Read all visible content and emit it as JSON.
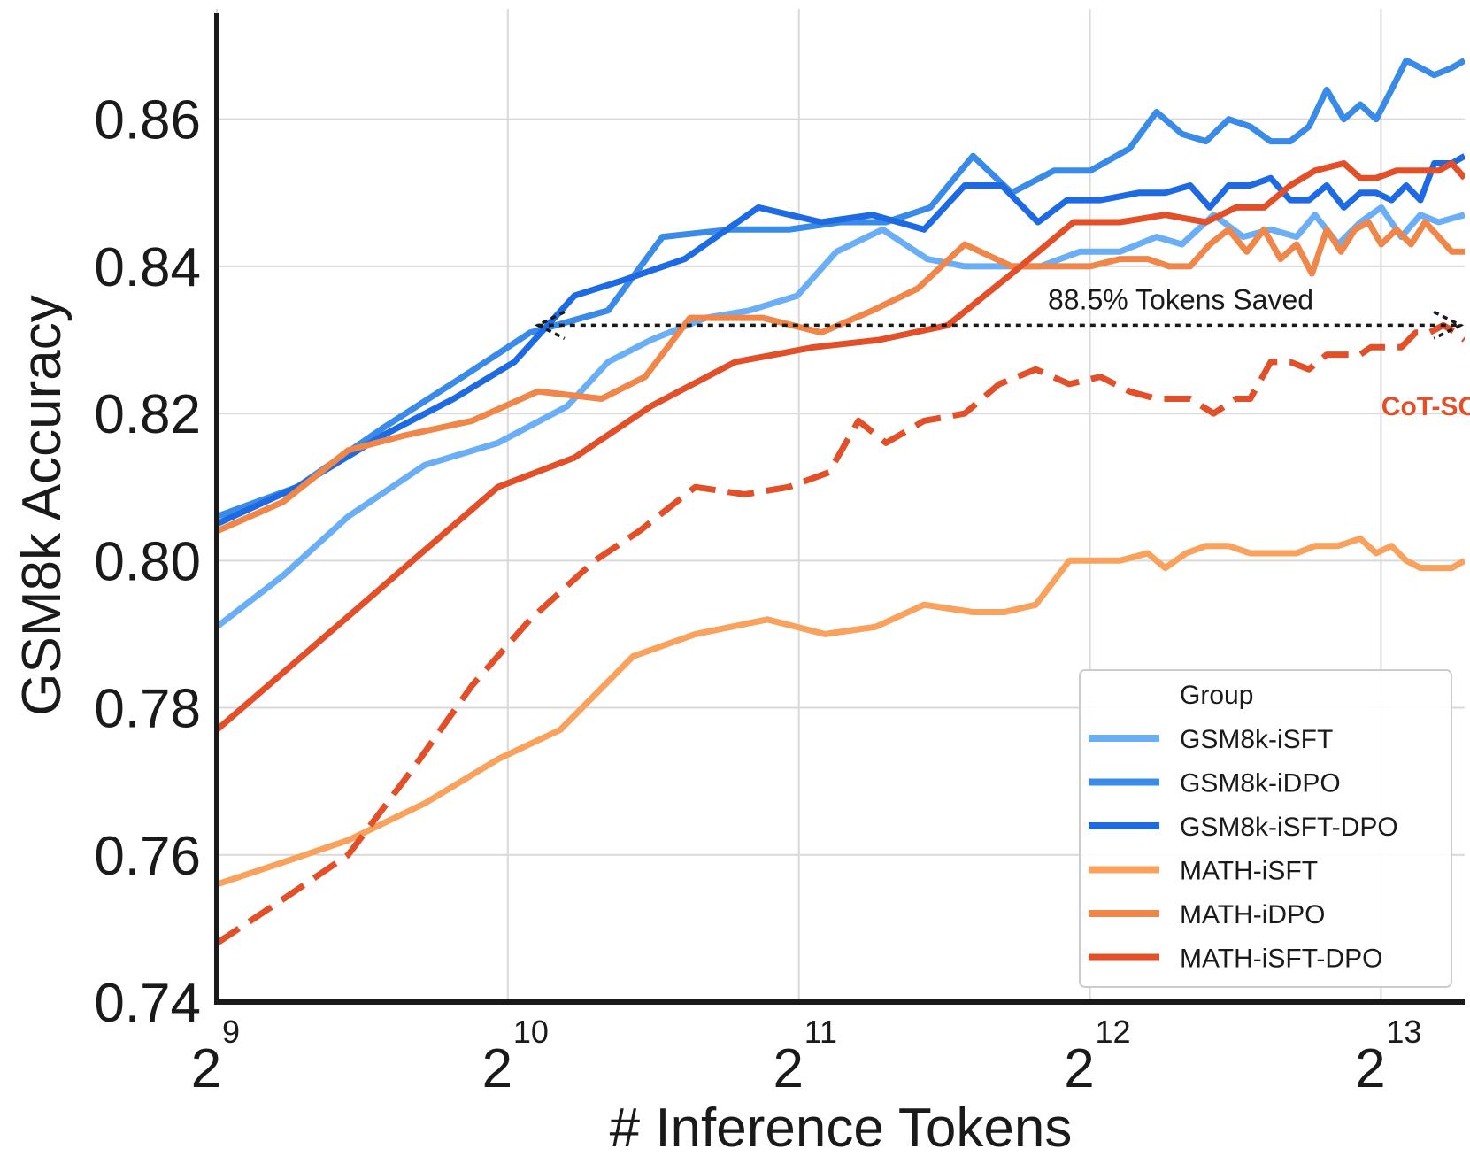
{
  "chart_data": {
    "type": "line",
    "xlabel": "# Inference Tokens",
    "ylabel": "GSM8k Accuracy",
    "x_scale": "log2",
    "xlim": [
      512,
      10000
    ],
    "ylim": [
      0.74,
      0.875
    ],
    "xticks": [
      {
        "value": 512,
        "base": "2",
        "exp": "9"
      },
      {
        "value": 1024,
        "base": "2",
        "exp": "10"
      },
      {
        "value": 2048,
        "base": "2",
        "exp": "11"
      },
      {
        "value": 4096,
        "base": "2",
        "exp": "12"
      },
      {
        "value": 8192,
        "base": "2",
        "exp": "13"
      }
    ],
    "yticks": [
      "0.74",
      "0.76",
      "0.78",
      "0.80",
      "0.82",
      "0.84",
      "0.86"
    ],
    "grid": true,
    "legend": {
      "title": "Group",
      "placement": "lower-right",
      "entries": [
        "GSM8k-iSFT",
        "GSM8k-iDPO",
        "GSM8k-iSFT-DPO",
        "MATH-iSFT",
        "MATH-iDPO",
        "MATH-iSFT-DPO"
      ]
    },
    "series": [
      {
        "name": "GSM8k-iSFT",
        "color": "#6aaef6",
        "dashed": false,
        "x": [
          512,
          600,
          700,
          840,
          1000,
          1180,
          1300,
          1440,
          1640,
          1820,
          2040,
          2240,
          2500,
          2780,
          3040,
          3300,
          3640,
          4000,
          4400,
          4800,
          5100,
          5500,
          5900,
          6300,
          6700,
          7000,
          7400,
          7800,
          8200,
          8600,
          9000,
          9400,
          10000
        ],
        "y": [
          0.791,
          0.798,
          0.806,
          0.813,
          0.816,
          0.821,
          0.827,
          0.83,
          0.833,
          0.834,
          0.836,
          0.842,
          0.845,
          0.841,
          0.84,
          0.84,
          0.84,
          0.842,
          0.842,
          0.844,
          0.843,
          0.847,
          0.844,
          0.845,
          0.844,
          0.847,
          0.843,
          0.846,
          0.848,
          0.844,
          0.847,
          0.846,
          0.847
        ]
      },
      {
        "name": "GSM8k-iDPO",
        "color": "#3a8ae8",
        "dashed": false,
        "x": [
          512,
          620,
          760,
          920,
          1080,
          1300,
          1480,
          1740,
          2000,
          2260,
          2520,
          2800,
          3100,
          3400,
          3760,
          4100,
          4500,
          4800,
          5100,
          5400,
          5700,
          6000,
          6300,
          6600,
          6900,
          7200,
          7500,
          7800,
          8100,
          8400,
          8700,
          9000,
          9300,
          9700,
          10000
        ],
        "y": [
          0.806,
          0.81,
          0.818,
          0.825,
          0.831,
          0.834,
          0.844,
          0.845,
          0.845,
          0.846,
          0.846,
          0.848,
          0.855,
          0.85,
          0.853,
          0.853,
          0.856,
          0.861,
          0.858,
          0.857,
          0.86,
          0.859,
          0.857,
          0.857,
          0.859,
          0.864,
          0.86,
          0.862,
          0.86,
          0.864,
          0.868,
          0.867,
          0.866,
          0.867,
          0.868
        ]
      },
      {
        "name": "GSM8k-iSFT-DPO",
        "color": "#1e6ae3",
        "dashed": false,
        "x": [
          512,
          620,
          760,
          900,
          1040,
          1200,
          1340,
          1560,
          1860,
          2160,
          2440,
          2760,
          3040,
          3320,
          3620,
          3880,
          4200,
          4600,
          4900,
          5200,
          5450,
          5700,
          6000,
          6300,
          6600,
          6900,
          7200,
          7500,
          7800,
          8100,
          8400,
          8700,
          9000,
          9300,
          9700,
          10000
        ],
        "y": [
          0.805,
          0.81,
          0.817,
          0.822,
          0.827,
          0.836,
          0.838,
          0.841,
          0.848,
          0.846,
          0.847,
          0.845,
          0.851,
          0.851,
          0.846,
          0.849,
          0.849,
          0.85,
          0.85,
          0.851,
          0.848,
          0.851,
          0.851,
          0.852,
          0.849,
          0.849,
          0.851,
          0.848,
          0.85,
          0.85,
          0.849,
          0.851,
          0.849,
          0.854,
          0.854,
          0.855
        ]
      },
      {
        "name": "MATH-iSFT",
        "color": "#f8a25d",
        "dashed": false,
        "x": [
          512,
          600,
          700,
          840,
          1000,
          1160,
          1380,
          1600,
          1900,
          2180,
          2460,
          2760,
          3100,
          3340,
          3600,
          3900,
          4100,
          4400,
          4700,
          4900,
          5150,
          5400,
          5700,
          6000,
          6300,
          6700,
          7000,
          7400,
          7800,
          8100,
          8400,
          8700,
          9000,
          9300,
          9700,
          10000
        ],
        "y": [
          0.756,
          0.759,
          0.762,
          0.767,
          0.773,
          0.777,
          0.787,
          0.79,
          0.792,
          0.79,
          0.791,
          0.794,
          0.793,
          0.793,
          0.794,
          0.8,
          0.8,
          0.8,
          0.801,
          0.799,
          0.801,
          0.802,
          0.802,
          0.801,
          0.801,
          0.801,
          0.802,
          0.802,
          0.803,
          0.801,
          0.802,
          0.8,
          0.799,
          0.799,
          0.799,
          0.8
        ]
      },
      {
        "name": "MATH-iDPO",
        "color": "#f0874a",
        "dashed": false,
        "x": [
          512,
          600,
          700,
          800,
          940,
          1100,
          1280,
          1420,
          1580,
          1740,
          1880,
          2160,
          2440,
          2720,
          3040,
          3400,
          3800,
          4100,
          4400,
          4700,
          4950,
          5200,
          5450,
          5700,
          5950,
          6200,
          6450,
          6700,
          6950,
          7200,
          7450,
          7700,
          7950,
          8200,
          8500,
          8800,
          9100,
          9400,
          9700,
          10000
        ],
        "y": [
          0.804,
          0.808,
          0.815,
          0.817,
          0.819,
          0.823,
          0.822,
          0.825,
          0.833,
          0.833,
          0.833,
          0.831,
          0.834,
          0.837,
          0.843,
          0.84,
          0.84,
          0.84,
          0.841,
          0.841,
          0.84,
          0.84,
          0.843,
          0.845,
          0.842,
          0.845,
          0.841,
          0.843,
          0.839,
          0.845,
          0.842,
          0.845,
          0.846,
          0.843,
          0.845,
          0.843,
          0.846,
          0.844,
          0.842,
          0.842
        ]
      },
      {
        "name": "MATH-iSFT-DPO",
        "color": "#e2502a",
        "dashed": false,
        "x": [
          512,
          640,
          800,
          1000,
          1200,
          1440,
          1760,
          2120,
          2480,
          2920,
          3400,
          3940,
          4400,
          4900,
          5400,
          5800,
          6200,
          6600,
          7000,
          7500,
          7800,
          8100,
          8500,
          8800,
          9100,
          9400,
          9700,
          10000
        ],
        "y": [
          0.777,
          0.788,
          0.799,
          0.81,
          0.814,
          0.821,
          0.827,
          0.829,
          0.83,
          0.832,
          0.839,
          0.846,
          0.846,
          0.847,
          0.846,
          0.848,
          0.848,
          0.851,
          0.853,
          0.854,
          0.852,
          0.852,
          0.853,
          0.853,
          0.853,
          0.853,
          0.854,
          0.852
        ]
      },
      {
        "name": "CoT-SC",
        "color": "#e2502a",
        "dashed": true,
        "x": [
          512,
          600,
          700,
          820,
          940,
          1080,
          1260,
          1400,
          1600,
          1800,
          2000,
          2200,
          2360,
          2520,
          2760,
          3040,
          3300,
          3600,
          3900,
          4200,
          4500,
          4800,
          5200,
          5500,
          5800,
          6000,
          6300,
          6600,
          6900,
          7200,
          7500,
          7800,
          8000,
          8300,
          8600,
          8900,
          9200,
          9500,
          9800,
          10000
        ],
        "y": [
          0.748,
          0.754,
          0.76,
          0.772,
          0.783,
          0.792,
          0.8,
          0.804,
          0.81,
          0.809,
          0.81,
          0.812,
          0.819,
          0.816,
          0.819,
          0.82,
          0.824,
          0.826,
          0.824,
          0.825,
          0.823,
          0.822,
          0.822,
          0.82,
          0.822,
          0.822,
          0.827,
          0.827,
          0.826,
          0.828,
          0.828,
          0.828,
          0.829,
          0.829,
          0.829,
          0.831,
          0.831,
          0.832,
          0.831,
          0.83
        ]
      }
    ],
    "annotations": [
      {
        "text": "88.5% Tokens Saved",
        "kind": "double-arrow",
        "x_from": 1100,
        "x_to": 9900,
        "y": 0.832
      },
      {
        "text": "CoT-SC",
        "kind": "series-label",
        "x": 8000,
        "y": 0.821,
        "color": "#e2502a"
      }
    ]
  }
}
